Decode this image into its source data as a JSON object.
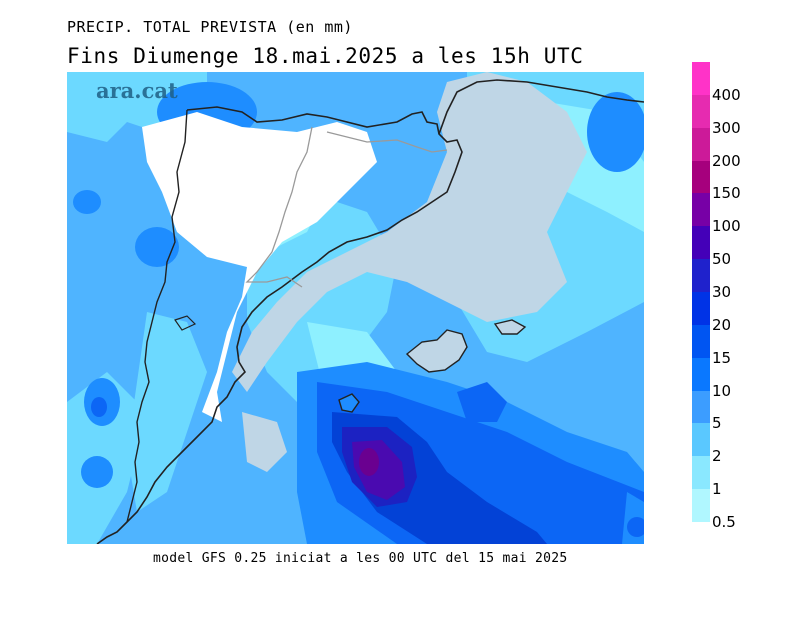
{
  "header": {
    "title": "PRECIP. TOTAL PREVISTA (en mm)",
    "subtitle": "Fins Diumenge 18.mai.2025 a les 15h UTC"
  },
  "footer": {
    "text": "model GFS 0.25 iniciat a les 00 UTC del 15 mai 2025"
  },
  "watermark": {
    "text": "ara.cat"
  },
  "legend": {
    "items": [
      {
        "label": "400",
        "color": "#ff33c8"
      },
      {
        "label": "300",
        "color": "#e62bb0"
      },
      {
        "label": "200",
        "color": "#cc1a99"
      },
      {
        "label": "150",
        "color": "#a6007d"
      },
      {
        "label": "100",
        "color": "#7700a6"
      },
      {
        "label": "50",
        "color": "#4400b8"
      },
      {
        "label": "30",
        "color": "#1f22cc"
      },
      {
        "label": "20",
        "color": "#0033e6"
      },
      {
        "label": "15",
        "color": "#0055f2"
      },
      {
        "label": "10",
        "color": "#0a78ff"
      },
      {
        "label": "5",
        "color": "#3c9dff"
      },
      {
        "label": "2",
        "color": "#5ac8ff"
      },
      {
        "label": "1",
        "color": "#8ae8ff"
      },
      {
        "label": "0.5",
        "color": "#b0f7ff"
      }
    ]
  },
  "map_colors": {
    "zero": "#ffffff",
    "very_low": "#bfd6e6",
    "lvl_0_5": "#8ef0ff",
    "lvl_1": "#6cd9ff",
    "lvl_2": "#4fb4ff",
    "lvl_5": "#1e8dff",
    "lvl_10": "#0c66f5",
    "lvl_20": "#0342d6",
    "lvl_30": "#1c22c2",
    "lvl_50": "#4a0ab0",
    "lvl_100": "#6a0090"
  }
}
